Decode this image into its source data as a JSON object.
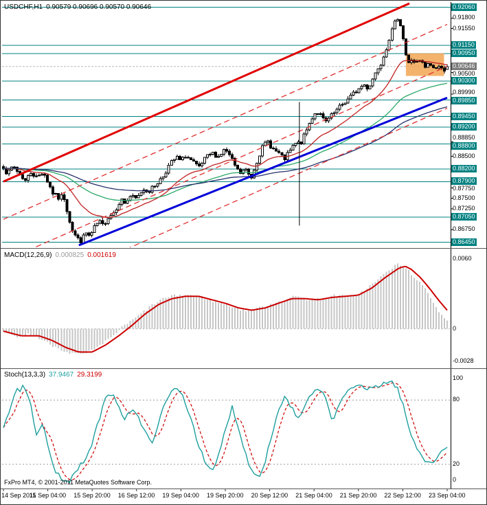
{
  "main": {
    "symbol": "USDCHF,H1",
    "ohlc_text": "0.90579 0.90696 0.90570 0.90646"
  },
  "macd": {
    "label": "MACD(12,26,9)",
    "value_main": "0.000825",
    "value_signal": "0.001619"
  },
  "stoch": {
    "label": "Stoch(13,3,3)",
    "value_k": "37.9467",
    "value_d": "29.3199"
  },
  "footer": {
    "copyright": "FxPro MT4, © 2001-2011 MetaQuotes Software Corp."
  },
  "time_axis": {
    "labels": [
      "14 Sep 2011",
      "15 Sep 04:00",
      "15 Sep 20:00",
      "16 Sep 12:00",
      "19 Sep 04:00",
      "19 Sep 20:00",
      "20 Sep 12:00",
      "21 Sep 04:00",
      "21 Sep 20:00",
      "22 Sep 12:00",
      "23 Sep 04:00"
    ]
  },
  "price_axis": {
    "current": {
      "text": "0.90646",
      "price": 0.90646
    },
    "labels": [
      {
        "text": "0.92060",
        "price": 0.9206,
        "highlight": true,
        "dy": 0
      },
      {
        "text": "0.91800",
        "price": 0.918,
        "highlight": false,
        "dy": 0
      },
      {
        "text": "0.91550",
        "price": 0.9155,
        "highlight": false,
        "dy": 0
      },
      {
        "text": "0.91150",
        "price": 0.9115,
        "highlight": true,
        "dy": 0
      },
      {
        "text": "0.90950",
        "price": 0.9095,
        "highlight": true,
        "dy": 0
      },
      {
        "text": "0.90500",
        "price": 0.905,
        "highlight": false,
        "dy": 2
      },
      {
        "text": "0.90300",
        "price": 0.903,
        "highlight": true,
        "dy": 0
      },
      {
        "text": "0.89990",
        "price": 0.8999,
        "highlight": false,
        "dy": -2
      },
      {
        "text": "0.89850",
        "price": 0.8985,
        "highlight": true,
        "dy": 2
      },
      {
        "text": "0.89450",
        "price": 0.8945,
        "highlight": true,
        "dy": 0
      },
      {
        "text": "0.89200",
        "price": 0.892,
        "highlight": true,
        "dy": 0
      },
      {
        "text": "0.88850",
        "price": 0.8885,
        "highlight": false,
        "dy": -5
      },
      {
        "text": "0.88800",
        "price": 0.888,
        "highlight": true,
        "dy": 4
      },
      {
        "text": "0.88500",
        "price": 0.885,
        "highlight": false,
        "dy": 0
      },
      {
        "text": "0.88200",
        "price": 0.882,
        "highlight": true,
        "dy": 0
      },
      {
        "text": "0.87900",
        "price": 0.879,
        "highlight": true,
        "dy": 0
      },
      {
        "text": "0.87750",
        "price": 0.8775,
        "highlight": false,
        "dy": 2
      },
      {
        "text": "0.87500",
        "price": 0.875,
        "highlight": false,
        "dy": 0
      },
      {
        "text": "0.87250",
        "price": 0.8725,
        "highlight": false,
        "dy": 0
      },
      {
        "text": "0.87050",
        "price": 0.8705,
        "highlight": true,
        "dy": 0
      },
      {
        "text": "0.86750",
        "price": 0.8675,
        "highlight": false,
        "dy": 0
      },
      {
        "text": "0.86450",
        "price": 0.8645,
        "highlight": true,
        "dy": 0
      }
    ]
  },
  "colors": {
    "level_teal": "#008080",
    "trend_red": "#e00000",
    "trend_blue": "#0000d8",
    "channel_dashed": "#e03030",
    "ma_fast": "#c22222",
    "ma_mid": "#2aa868",
    "ma_slow": "#26306a",
    "macd_histogram": "#c6c6c6",
    "macd_signal": "#cc0000",
    "stoch_main": "#1e9e9e",
    "stoch_signal": "#cc0000",
    "rect_highlight": "#f2a654",
    "bull_candle": "#ffffff",
    "bear_candle": "#000000",
    "candle_outline": "#000000"
  },
  "chart_data": [
    {
      "type": "candlestick",
      "title": "USDCHF,H1",
      "last_bar": {
        "o": 0.90579,
        "h": 0.90696,
        "l": 0.9057,
        "c": 0.90646
      },
      "num_bars": 162,
      "ylim": [
        0.8638,
        0.9215
      ],
      "x_range": [
        "14 Sep 2011",
        "23 Sep 04:00"
      ],
      "price_path_anchors": [
        [
          0.0,
          0.8822
        ],
        [
          0.01,
          0.8808
        ],
        [
          0.022,
          0.8828
        ],
        [
          0.035,
          0.881
        ],
        [
          0.05,
          0.8792
        ],
        [
          0.062,
          0.8812
        ],
        [
          0.075,
          0.88
        ],
        [
          0.09,
          0.8814
        ],
        [
          0.1,
          0.879
        ],
        [
          0.112,
          0.8762
        ],
        [
          0.125,
          0.875
        ],
        [
          0.135,
          0.8758
        ],
        [
          0.145,
          0.8712
        ],
        [
          0.155,
          0.8675
        ],
        [
          0.165,
          0.8655
        ],
        [
          0.175,
          0.8648
        ],
        [
          0.185,
          0.8668
        ],
        [
          0.195,
          0.8658
        ],
        [
          0.205,
          0.868
        ],
        [
          0.215,
          0.8695
        ],
        [
          0.225,
          0.8685
        ],
        [
          0.235,
          0.8705
        ],
        [
          0.25,
          0.8718
        ],
        [
          0.265,
          0.8748
        ],
        [
          0.275,
          0.8738
        ],
        [
          0.285,
          0.8755
        ],
        [
          0.3,
          0.8748
        ],
        [
          0.315,
          0.8772
        ],
        [
          0.33,
          0.8768
        ],
        [
          0.345,
          0.8785
        ],
        [
          0.36,
          0.8802
        ],
        [
          0.375,
          0.8832
        ],
        [
          0.39,
          0.8848
        ],
        [
          0.4,
          0.8838
        ],
        [
          0.41,
          0.8852
        ],
        [
          0.425,
          0.8838
        ],
        [
          0.44,
          0.8822
        ],
        [
          0.455,
          0.8845
        ],
        [
          0.47,
          0.8858
        ],
        [
          0.485,
          0.885
        ],
        [
          0.5,
          0.8868
        ],
        [
          0.52,
          0.8832
        ],
        [
          0.532,
          0.8808
        ],
        [
          0.545,
          0.882
        ],
        [
          0.558,
          0.8798
        ],
        [
          0.57,
          0.8835
        ],
        [
          0.582,
          0.8868
        ],
        [
          0.595,
          0.8888
        ],
        [
          0.607,
          0.8868
        ],
        [
          0.62,
          0.8858
        ],
        [
          0.632,
          0.8842
        ],
        [
          0.645,
          0.8862
        ],
        [
          0.657,
          0.888
        ],
        [
          0.67,
          0.8882
        ],
        [
          0.682,
          0.891
        ],
        [
          0.695,
          0.8942
        ],
        [
          0.705,
          0.8958
        ],
        [
          0.715,
          0.8948
        ],
        [
          0.725,
          0.893
        ],
        [
          0.737,
          0.8944
        ],
        [
          0.75,
          0.8958
        ],
        [
          0.762,
          0.8972
        ],
        [
          0.775,
          0.8985
        ],
        [
          0.787,
          0.8998
        ],
        [
          0.8,
          0.901
        ],
        [
          0.812,
          0.9022
        ],
        [
          0.822,
          0.9012
        ],
        [
          0.832,
          0.9035
        ],
        [
          0.842,
          0.9058
        ],
        [
          0.852,
          0.9075
        ],
        [
          0.862,
          0.9105
        ],
        [
          0.872,
          0.914
        ],
        [
          0.882,
          0.9168
        ],
        [
          0.89,
          0.9185
        ],
        [
          0.898,
          0.915
        ],
        [
          0.905,
          0.91
        ],
        [
          0.912,
          0.907
        ],
        [
          0.92,
          0.9082
        ],
        [
          0.93,
          0.9072
        ],
        [
          0.94,
          0.9078
        ],
        [
          0.95,
          0.9062
        ],
        [
          0.96,
          0.9072
        ],
        [
          0.97,
          0.906
        ],
        [
          0.98,
          0.9066
        ],
        [
          0.99,
          0.9055
        ],
        [
          1.0,
          0.9064
        ]
      ],
      "horizontal_levels": [
        0.9206,
        0.9115,
        0.9095,
        0.903,
        0.8985,
        0.8945,
        0.892,
        0.888,
        0.882,
        0.879,
        0.8705,
        0.8645
      ],
      "trendlines": [
        {
          "name": "upper-channel-support",
          "color_key": "trend_red",
          "width": 3,
          "dashed": false,
          "points": [
            [
              0.0,
              0.879
            ],
            [
              0.915,
              0.9215
            ]
          ]
        },
        {
          "name": "lower-channel-support",
          "color_key": "trend_blue",
          "width": 3,
          "dashed": false,
          "points": [
            [
              0.17,
              0.8638
            ],
            [
              1.0,
              0.899
            ]
          ]
        },
        {
          "name": "channel-dashed-1",
          "color_key": "channel_dashed",
          "width": 1.3,
          "dashed": true,
          "points": [
            [
              0.0,
              0.87
            ],
            [
              1.0,
              0.9165
            ]
          ]
        },
        {
          "name": "channel-dashed-2",
          "color_key": "channel_dashed",
          "width": 1.3,
          "dashed": true,
          "points": [
            [
              0.0,
              0.86
            ],
            [
              1.0,
              0.9065
            ]
          ]
        },
        {
          "name": "channel-dashed-3",
          "color_key": "channel_dashed",
          "width": 1.3,
          "dashed": true,
          "points": [
            [
              0.0,
              0.85
            ],
            [
              1.0,
              0.8965
            ]
          ]
        }
      ],
      "vertical_line": {
        "f": 0.667,
        "price_from": 0.898,
        "price_to": 0.8685
      },
      "rectangle": {
        "f_from": 0.907,
        "f_to": 0.993,
        "price_from": 0.9042,
        "price_to": 0.9096
      },
      "moving_averages": [
        {
          "period": 21,
          "color_key": "ma_fast",
          "width": 1.3
        },
        {
          "period": 55,
          "color_key": "ma_mid",
          "width": 1.3
        },
        {
          "period": 100,
          "color_key": "ma_slow",
          "width": 1.3
        }
      ]
    },
    {
      "type": "macd",
      "title": "MACD(12,26,9)",
      "current_values": {
        "macd": "0.000825",
        "signal": "0.001619"
      },
      "ylim": [
        -0.0031,
        0.0066
      ],
      "axis_labels": [
        {
          "text": "0.0060",
          "value": 0.006
        },
        {
          "text": "0",
          "value": 0
        },
        {
          "text": "-0.0028",
          "value": -0.0028
        }
      ],
      "macd_anchors": [
        [
          0.0,
          -0.0003
        ],
        [
          0.03,
          -0.0007
        ],
        [
          0.06,
          -0.0004
        ],
        [
          0.09,
          -0.001
        ],
        [
          0.12,
          -0.0016
        ],
        [
          0.15,
          -0.0021
        ],
        [
          0.18,
          -0.0022
        ],
        [
          0.21,
          -0.0017
        ],
        [
          0.24,
          -0.0008
        ],
        [
          0.27,
          0.0002
        ],
        [
          0.3,
          0.001
        ],
        [
          0.33,
          0.0019
        ],
        [
          0.36,
          0.0026
        ],
        [
          0.39,
          0.0029
        ],
        [
          0.42,
          0.0029
        ],
        [
          0.45,
          0.0027
        ],
        [
          0.48,
          0.0023
        ],
        [
          0.51,
          0.002
        ],
        [
          0.54,
          0.0016
        ],
        [
          0.57,
          0.0017
        ],
        [
          0.6,
          0.0021
        ],
        [
          0.63,
          0.0025
        ],
        [
          0.66,
          0.0028
        ],
        [
          0.69,
          0.0025
        ],
        [
          0.72,
          0.0026
        ],
        [
          0.75,
          0.0029
        ],
        [
          0.78,
          0.0027
        ],
        [
          0.81,
          0.0032
        ],
        [
          0.84,
          0.0041
        ],
        [
          0.87,
          0.0051
        ],
        [
          0.89,
          0.0056
        ],
        [
          0.91,
          0.0051
        ],
        [
          0.93,
          0.0043
        ],
        [
          0.95,
          0.0034
        ],
        [
          0.97,
          0.0022
        ],
        [
          0.985,
          0.0013
        ],
        [
          1.0,
          0.0008
        ]
      ],
      "signal_anchors": [
        [
          0.0,
          -0.0002
        ],
        [
          0.04,
          -0.0006
        ],
        [
          0.08,
          -0.0006
        ],
        [
          0.11,
          -0.001
        ],
        [
          0.14,
          -0.0016
        ],
        [
          0.17,
          -0.002
        ],
        [
          0.2,
          -0.002
        ],
        [
          0.23,
          -0.0014
        ],
        [
          0.26,
          -0.0006
        ],
        [
          0.29,
          0.0003
        ],
        [
          0.32,
          0.0013
        ],
        [
          0.35,
          0.0021
        ],
        [
          0.38,
          0.0026
        ],
        [
          0.41,
          0.0028
        ],
        [
          0.44,
          0.0028
        ],
        [
          0.47,
          0.0025
        ],
        [
          0.5,
          0.0022
        ],
        [
          0.53,
          0.0018
        ],
        [
          0.56,
          0.0016
        ],
        [
          0.59,
          0.0018
        ],
        [
          0.62,
          0.0022
        ],
        [
          0.65,
          0.0026
        ],
        [
          0.68,
          0.0026
        ],
        [
          0.71,
          0.0025
        ],
        [
          0.74,
          0.0027
        ],
        [
          0.77,
          0.0028
        ],
        [
          0.8,
          0.0029
        ],
        [
          0.83,
          0.0035
        ],
        [
          0.86,
          0.0044
        ],
        [
          0.89,
          0.0052
        ],
        [
          0.905,
          0.0054
        ],
        [
          0.92,
          0.0051
        ],
        [
          0.94,
          0.0044
        ],
        [
          0.96,
          0.0035
        ],
        [
          0.98,
          0.0025
        ],
        [
          1.0,
          0.0016
        ]
      ]
    },
    {
      "type": "stochastic",
      "title": "Stoch(13,3,3)",
      "current_values": {
        "k": "37.9467",
        "d": "29.3199"
      },
      "ylim": [
        0,
        100
      ],
      "levels": [
        80,
        20
      ],
      "axis_labels": [
        {
          "text": "100",
          "value": 100
        },
        {
          "text": "80",
          "value": 80
        },
        {
          "text": "20",
          "value": 20
        },
        {
          "text": "0",
          "value": 0
        }
      ],
      "k_anchors": [
        [
          0.0,
          55
        ],
        [
          0.015,
          72
        ],
        [
          0.03,
          88
        ],
        [
          0.045,
          92
        ],
        [
          0.06,
          78
        ],
        [
          0.075,
          45
        ],
        [
          0.09,
          58
        ],
        [
          0.105,
          30
        ],
        [
          0.12,
          12
        ],
        [
          0.135,
          6
        ],
        [
          0.15,
          4
        ],
        [
          0.165,
          14
        ],
        [
          0.18,
          22
        ],
        [
          0.2,
          38
        ],
        [
          0.215,
          62
        ],
        [
          0.23,
          80
        ],
        [
          0.245,
          88
        ],
        [
          0.26,
          74
        ],
        [
          0.275,
          62
        ],
        [
          0.29,
          74
        ],
        [
          0.305,
          62
        ],
        [
          0.32,
          48
        ],
        [
          0.335,
          42
        ],
        [
          0.35,
          58
        ],
        [
          0.365,
          78
        ],
        [
          0.38,
          88
        ],
        [
          0.395,
          92
        ],
        [
          0.41,
          78
        ],
        [
          0.425,
          60
        ],
        [
          0.44,
          38
        ],
        [
          0.455,
          20
        ],
        [
          0.47,
          12
        ],
        [
          0.485,
          28
        ],
        [
          0.5,
          52
        ],
        [
          0.515,
          74
        ],
        [
          0.53,
          55
        ],
        [
          0.545,
          30
        ],
        [
          0.56,
          14
        ],
        [
          0.575,
          8
        ],
        [
          0.59,
          24
        ],
        [
          0.605,
          48
        ],
        [
          0.62,
          70
        ],
        [
          0.635,
          85
        ],
        [
          0.65,
          72
        ],
        [
          0.665,
          62
        ],
        [
          0.68,
          74
        ],
        [
          0.695,
          86
        ],
        [
          0.71,
          90
        ],
        [
          0.725,
          82
        ],
        [
          0.74,
          62
        ],
        [
          0.755,
          72
        ],
        [
          0.77,
          86
        ],
        [
          0.785,
          92
        ],
        [
          0.8,
          95
        ],
        [
          0.815,
          88
        ],
        [
          0.83,
          92
        ],
        [
          0.845,
          94
        ],
        [
          0.86,
          96
        ],
        [
          0.875,
          97
        ],
        [
          0.89,
          90
        ],
        [
          0.905,
          68
        ],
        [
          0.92,
          45
        ],
        [
          0.935,
          32
        ],
        [
          0.95,
          24
        ],
        [
          0.965,
          22
        ],
        [
          0.98,
          28
        ],
        [
          1.0,
          38
        ]
      ]
    }
  ]
}
